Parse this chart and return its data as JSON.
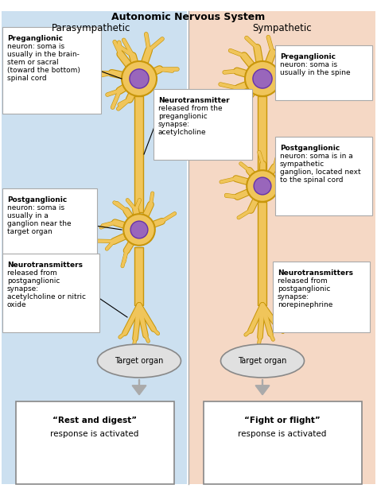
{
  "title": "Autonomic Nervous System",
  "left_label": "Parasympathetic",
  "right_label": "Sympathetic",
  "left_bg": "#cce0f0",
  "right_bg": "#f5d8c5",
  "neuron_fill": "#f0c55a",
  "neuron_edge": "#c8960a",
  "soma_fill": "#9966bb",
  "soma_edge": "#6633aa",
  "axon_fill": "#f0c55a",
  "axon_edge": "#c8960a",
  "text_box_bg": "#ffffff",
  "text_box_edge": "#aaaaaa",
  "arrow_color": "#aaaaaa",
  "divider_color": "#aaaaaa",
  "bottom_box_edge": "#888888",
  "bottom_box_bg": "#ffffff",
  "target_organ_fill": "#e0e0e0",
  "target_organ_edge": "#888888"
}
